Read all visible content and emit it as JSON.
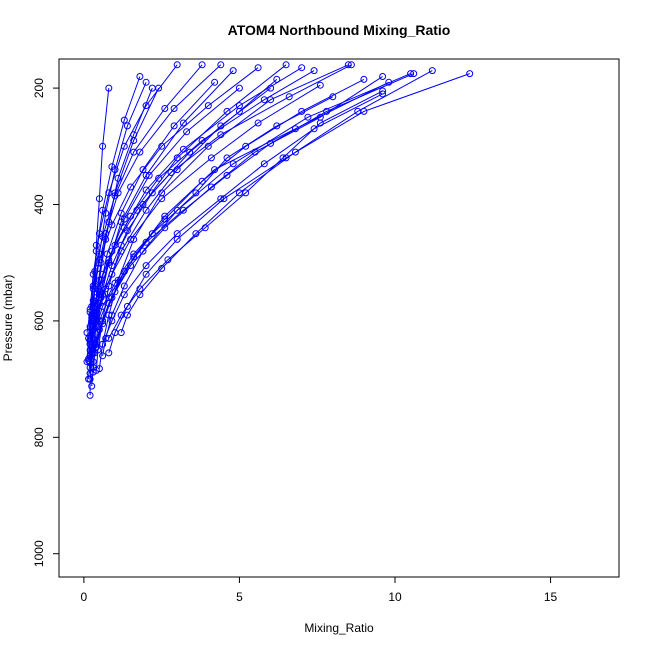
{
  "chart_data": {
    "type": "line",
    "title": "ATOM4 Northbound Mixing_Ratio",
    "xlabel": "Mixing_Ratio",
    "ylabel": "Pressure (mbar)",
    "xlim": [
      -0.8,
      17.2
    ],
    "ylim": [
      1040,
      150
    ],
    "y_reversed": true,
    "x_ticks": [
      0,
      5,
      10,
      15
    ],
    "x_tick_labels": [
      "0",
      "5",
      "10",
      "15"
    ],
    "y_ticks": [
      200,
      400,
      600,
      800,
      1000
    ],
    "y_tick_labels": [
      "200",
      "400",
      "600",
      "800",
      "1000"
    ],
    "grid": false,
    "legend": "none",
    "marker": "open-circle",
    "color": "#0000ff",
    "series": [
      {
        "x": [
          0.2,
          0.2,
          0.3,
          0.3,
          0.35,
          0.4,
          0.5,
          0.6,
          0.8
        ],
        "y": [
          728,
          700,
          650,
          600,
          540,
          470,
          390,
          300,
          200
        ]
      },
      {
        "x": [
          0.25,
          0.3,
          0.35,
          0.4,
          0.5,
          0.7,
          1.0,
          1.6,
          2.4
        ],
        "y": [
          712,
          680,
          640,
          590,
          530,
          460,
          380,
          290,
          200
        ]
      },
      {
        "x": [
          0.3,
          0.35,
          0.45,
          0.55,
          0.8,
          1.2,
          2.0,
          3.2,
          4.8
        ],
        "y": [
          688,
          655,
          610,
          560,
          500,
          430,
          350,
          260,
          170
        ]
      },
      {
        "x": [
          0.4,
          0.45,
          0.6,
          0.8,
          1.2,
          1.9,
          3.0,
          4.6,
          6.5
        ],
        "y": [
          685,
          650,
          600,
          540,
          470,
          400,
          320,
          240,
          160
        ]
      },
      {
        "x": [
          0.5,
          0.6,
          0.8,
          1.1,
          1.6,
          2.5,
          4.0,
          6.0,
          8.5
        ],
        "y": [
          682,
          640,
          590,
          530,
          460,
          380,
          300,
          220,
          160
        ]
      },
      {
        "x": [
          0.3,
          0.4,
          0.6,
          1.0,
          1.6,
          2.6,
          4.2,
          6.8,
          9.8
        ],
        "y": [
          670,
          640,
          600,
          550,
          490,
          420,
          340,
          270,
          190
        ]
      },
      {
        "x": [
          0.6,
          0.7,
          0.9,
          1.3,
          1.9,
          3.0,
          4.8,
          7.2,
          10.5
        ],
        "y": [
          660,
          630,
          590,
          540,
          480,
          410,
          330,
          250,
          175
        ]
      },
      {
        "x": [
          0.8,
          1.0,
          1.4,
          2.0,
          3.0,
          4.5,
          6.5,
          9.0,
          12.4
        ],
        "y": [
          655,
          620,
          575,
          520,
          460,
          390,
          320,
          240,
          175
        ]
      },
      {
        "x": [
          1.2,
          1.4,
          1.8,
          2.5,
          3.6,
          5.0,
          6.8,
          8.8,
          11.2
        ],
        "y": [
          620,
          590,
          555,
          510,
          450,
          380,
          310,
          240,
          170
        ]
      },
      {
        "x": [
          0.2,
          0.3,
          0.5,
          0.9,
          1.5,
          2.5,
          4.1,
          5.6,
          7.6
        ],
        "y": [
          640,
          610,
          570,
          520,
          460,
          390,
          320,
          260,
          195
        ]
      },
      {
        "x": [
          0.4,
          0.6,
          0.9,
          1.5,
          2.6,
          4.1,
          5.5,
          7.6,
          9.6
        ],
        "y": [
          645,
          605,
          560,
          505,
          440,
          370,
          310,
          250,
          180
        ]
      },
      {
        "x": [
          0.3,
          0.5,
          0.8,
          1.3,
          2.2,
          3.6,
          4.6,
          6.2,
          8.0
        ],
        "y": [
          655,
          615,
          570,
          515,
          450,
          380,
          320,
          265,
          215
        ]
      },
      {
        "x": [
          0.2,
          0.3,
          0.4,
          0.7,
          1.2,
          2.0,
          3.0,
          4.4,
          6.0
        ],
        "y": [
          690,
          650,
          600,
          545,
          480,
          410,
          340,
          265,
          200
        ]
      },
      {
        "x": [
          0.15,
          0.2,
          0.3,
          0.5,
          0.8,
          1.3,
          2.1,
          3.3,
          5.0
        ],
        "y": [
          700,
          660,
          615,
          560,
          495,
          425,
          350,
          275,
          200
        ]
      },
      {
        "x": [
          0.2,
          0.25,
          0.35,
          0.5,
          0.75,
          1.2,
          1.9,
          2.9,
          4.2
        ],
        "y": [
          680,
          645,
          600,
          550,
          485,
          415,
          340,
          265,
          190
        ]
      },
      {
        "x": [
          0.1,
          0.15,
          0.2,
          0.3,
          0.5,
          0.8,
          1.3,
          2.0,
          3.0
        ],
        "y": [
          670,
          630,
          580,
          520,
          450,
          380,
          300,
          230,
          160
        ]
      },
      {
        "x": [
          0.15,
          0.2,
          0.25,
          0.35,
          0.6,
          1.0,
          1.6,
          2.6,
          3.8
        ],
        "y": [
          665,
          625,
          575,
          515,
          455,
          385,
          310,
          235,
          160
        ]
      },
      {
        "x": [
          0.2,
          0.2,
          0.3,
          0.45,
          0.7,
          1.1,
          1.8,
          2.9,
          4.4
        ],
        "y": [
          650,
          610,
          565,
          510,
          450,
          380,
          310,
          235,
          160
        ]
      },
      {
        "x": [
          0.2,
          0.3,
          0.5,
          0.8,
          1.3,
          2.0,
          3.2,
          5.0,
          7.0
        ],
        "y": [
          635,
          600,
          555,
          500,
          440,
          375,
          305,
          230,
          165
        ]
      },
      {
        "x": [
          0.25,
          0.35,
          0.55,
          0.9,
          1.5,
          2.4,
          3.8,
          5.8,
          7.4
        ],
        "y": [
          600,
          570,
          530,
          480,
          420,
          355,
          290,
          220,
          170
        ]
      },
      {
        "x": [
          0.3,
          0.4,
          0.6,
          1.0,
          1.7,
          2.8,
          4.4,
          6.6,
          8.6
        ],
        "y": [
          590,
          560,
          520,
          470,
          410,
          345,
          280,
          215,
          160
        ]
      },
      {
        "x": [
          0.1,
          0.2,
          0.3,
          0.5,
          0.9,
          1.5,
          2.5,
          4.0,
          5.6
        ],
        "y": [
          620,
          585,
          545,
          495,
          435,
          370,
          300,
          230,
          165
        ]
      },
      {
        "x": [
          0.4,
          0.6,
          1.0,
          1.6,
          2.6,
          3.8,
          5.2,
          7.0,
          9.0
        ],
        "y": [
          610,
          575,
          535,
          485,
          425,
          360,
          300,
          240,
          185
        ]
      },
      {
        "x": [
          0.5,
          0.8,
          1.3,
          2.0,
          3.2,
          4.6,
          6.0,
          7.8,
          10.6
        ],
        "y": [
          600,
          560,
          515,
          465,
          410,
          350,
          295,
          240,
          175
        ]
      },
      {
        "x": [
          0.2,
          0.25,
          0.3,
          0.4,
          0.55,
          0.8,
          1.1,
          1.6,
          2.2
        ],
        "y": [
          690,
          655,
          610,
          560,
          500,
          430,
          355,
          280,
          200
        ]
      },
      {
        "x": [
          0.2,
          0.2,
          0.25,
          0.35,
          0.5,
          0.7,
          1.0,
          1.4,
          2.0
        ],
        "y": [
          672,
          640,
          595,
          545,
          485,
          415,
          340,
          265,
          190
        ]
      },
      {
        "x": [
          0.15,
          0.2,
          0.25,
          0.3,
          0.4,
          0.6,
          0.9,
          1.3,
          1.8
        ],
        "y": [
          668,
          632,
          590,
          540,
          480,
          410,
          335,
          255,
          180
        ]
      },
      {
        "x": [
          0.3,
          0.4,
          0.6,
          0.9,
          1.4,
          2.2,
          3.4,
          5.0,
          6.2
        ],
        "y": [
          630,
          595,
          555,
          505,
          445,
          380,
          310,
          240,
          185
        ]
      },
      {
        "x": [
          0.6,
          0.9,
          1.3,
          2.0,
          3.0,
          4.4,
          5.8,
          7.4,
          9.6
        ],
        "y": [
          640,
          600,
          555,
          505,
          450,
          390,
          330,
          270,
          210
        ]
      },
      {
        "x": [
          0.8,
          1.2,
          1.8,
          2.7,
          3.9,
          5.2,
          6.4,
          7.6,
          9.6
        ],
        "y": [
          630,
          590,
          545,
          495,
          440,
          380,
          320,
          260,
          205
        ]
      }
    ]
  }
}
